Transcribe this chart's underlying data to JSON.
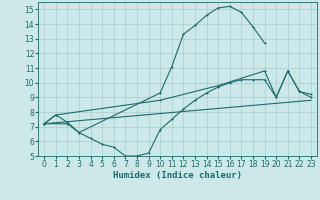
{
  "bg_color": "#cde8e8",
  "grid_color": "#a8cccc",
  "line_color": "#1e6b6b",
  "line1_x": [
    0,
    1,
    2,
    3,
    10,
    11,
    12,
    13,
    14,
    15,
    16,
    17,
    18,
    19
  ],
  "line1_y": [
    7.2,
    7.8,
    7.3,
    6.6,
    9.3,
    11.1,
    13.3,
    13.9,
    14.6,
    15.1,
    15.2,
    14.8,
    13.8,
    12.7
  ],
  "line2_x": [
    0,
    1,
    10,
    15,
    19,
    20,
    21,
    22,
    23
  ],
  "line2_y": [
    7.2,
    7.8,
    8.8,
    9.8,
    10.8,
    9.0,
    10.8,
    9.4,
    9.2
  ],
  "line3_x": [
    0,
    2,
    3,
    4,
    5,
    6,
    7,
    8,
    9,
    10,
    11,
    12,
    13,
    14,
    15,
    16,
    17,
    18,
    19,
    20,
    21,
    22,
    23
  ],
  "line3_y": [
    7.2,
    7.2,
    6.6,
    6.2,
    5.8,
    5.6,
    5.0,
    5.0,
    5.2,
    6.8,
    7.5,
    8.2,
    8.8,
    9.3,
    9.7,
    10.0,
    10.2,
    10.2,
    10.2,
    9.0,
    10.8,
    9.4,
    9.0
  ],
  "line4_x": [
    0,
    23
  ],
  "line4_y": [
    7.2,
    8.8
  ],
  "xlim": [
    -0.5,
    23.5
  ],
  "ylim": [
    5.0,
    15.5
  ],
  "xticks": [
    0,
    1,
    2,
    3,
    4,
    5,
    6,
    7,
    8,
    9,
    10,
    11,
    12,
    13,
    14,
    15,
    16,
    17,
    18,
    19,
    20,
    21,
    22,
    23
  ],
  "yticks": [
    5,
    6,
    7,
    8,
    9,
    10,
    11,
    12,
    13,
    14,
    15
  ],
  "xlabel": "Humidex (Indice chaleur)",
  "xlabel_fontsize": 6.5,
  "tick_fontsize": 5.5
}
